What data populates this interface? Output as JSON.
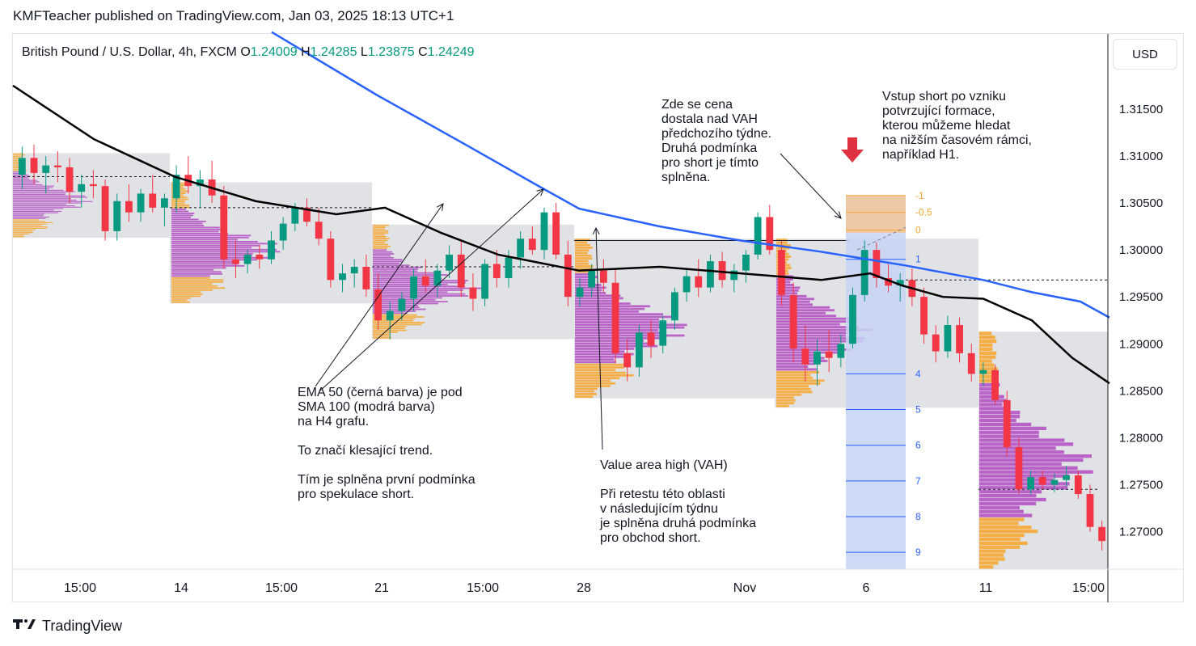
{
  "published_line": "KMFTeacher published on TradingView.com, Jan 03, 2025 18:13 UTC+1",
  "footer_brand": "TradingView",
  "currency_button": "USD",
  "symbol_line": {
    "name": "British Pound / U.S. Dollar, 4h, FXCM",
    "o_label": "O",
    "o_value": "1.24009",
    "h_label": "H",
    "h_value": "1.24285",
    "l_label": "L",
    "l_value": "1.23875",
    "c_label": "C",
    "c_value": "1.24249"
  },
  "colors": {
    "up": "#089981",
    "down": "#f23645",
    "ema50": "#000000",
    "sma100": "#2962ff",
    "profile_purple": "#b554c4",
    "profile_orange": "#f7a833",
    "grid": "#e0e3eb",
    "ohlc": "#089981",
    "fib_zone": "#e7b788",
    "measure_zone": "#c6d3f5"
  },
  "annotations": {
    "trend_lines": [
      "EMA 50 (černá barva) je pod",
      "SMA 100 (modrá barva)",
      "na H4 grafu.",
      "",
      "To značí klesající trend.",
      "",
      "Tím je splněna první podmínka",
      "pro spekulace short."
    ],
    "vah_lines": [
      "Value area high (VAH)",
      "",
      "Při retestu této oblasti",
      "v následujícím týdnu",
      "je splněna druhá podmínka",
      "pro obchod short."
    ],
    "price_above_lines": [
      "Zde se cena",
      "dostala nad VAH",
      "předchozího týdne.",
      "Druhá podmínka",
      "pro short je tímto",
      "splněna."
    ],
    "entry_lines": [
      "Vstup short po vzniku",
      "potvrzující formace,",
      "kterou můžeme hledat",
      "na nižším časovém rámci,",
      "například H1."
    ]
  },
  "chart_data": {
    "type": "candlestick",
    "symbol": "British Pound / U.S. Dollar",
    "timeframe": "4h",
    "exchange": "FXCM",
    "y_axis": {
      "ylim": [
        1.266,
        1.323
      ],
      "ticks": [
        "1.31500",
        "1.31000",
        "1.30500",
        "1.30000",
        "1.29500",
        "1.29000",
        "1.28500",
        "1.28000",
        "1.27500",
        "1.27000"
      ]
    },
    "x_axis": {
      "ticks": [
        "15:00",
        "14",
        "15:00",
        "21",
        "15:00",
        "28",
        "",
        "Nov",
        "6",
        "11",
        "15:00"
      ]
    },
    "fib_levels": [
      "-1",
      "-0.5",
      "0"
    ],
    "measure_levels": [
      "1",
      "4",
      "5",
      "6",
      "7",
      "8",
      "9"
    ],
    "ema50": [
      [
        0,
        1.3175
      ],
      [
        100,
        1.3118
      ],
      [
        200,
        1.3078
      ],
      [
        300,
        1.3052
      ],
      [
        400,
        1.3038
      ],
      [
        460,
        1.3045
      ],
      [
        530,
        1.3018
      ],
      [
        600,
        1.2995
      ],
      [
        700,
        1.2978
      ],
      [
        800,
        1.2982
      ],
      [
        900,
        1.2975
      ],
      [
        1000,
        1.2968
      ],
      [
        1060,
        1.2975
      ],
      [
        1100,
        1.2962
      ],
      [
        1150,
        1.295
      ],
      [
        1200,
        1.2948
      ],
      [
        1260,
        1.2925
      ],
      [
        1310,
        1.2885
      ],
      [
        1356,
        1.2858
      ]
    ],
    "sma100": [
      [
        320,
        1.3232
      ],
      [
        450,
        1.3165
      ],
      [
        560,
        1.3112
      ],
      [
        650,
        1.3068
      ],
      [
        700,
        1.3044
      ],
      [
        800,
        1.3025
      ],
      [
        900,
        1.301
      ],
      [
        1000,
        1.2998
      ],
      [
        1100,
        1.2984
      ],
      [
        1200,
        1.2968
      ],
      [
        1260,
        1.2955
      ],
      [
        1320,
        1.2945
      ],
      [
        1356,
        1.2928
      ]
    ],
    "candles": [
      {
        "o": 1.308,
        "h": 1.311,
        "l": 1.3065,
        "c": 1.3098
      },
      {
        "o": 1.3098,
        "h": 1.3112,
        "l": 1.307,
        "c": 1.3082
      },
      {
        "o": 1.3082,
        "h": 1.31,
        "l": 1.306,
        "c": 1.309
      },
      {
        "o": 1.309,
        "h": 1.3105,
        "l": 1.3072,
        "c": 1.3088
      },
      {
        "o": 1.3088,
        "h": 1.3098,
        "l": 1.305,
        "c": 1.3062
      },
      {
        "o": 1.3062,
        "h": 1.308,
        "l": 1.3045,
        "c": 1.307
      },
      {
        "o": 1.307,
        "h": 1.3085,
        "l": 1.3055,
        "c": 1.3068
      },
      {
        "o": 1.3068,
        "h": 1.3075,
        "l": 1.301,
        "c": 1.302
      },
      {
        "o": 1.302,
        "h": 1.306,
        "l": 1.301,
        "c": 1.3052
      },
      {
        "o": 1.3052,
        "h": 1.307,
        "l": 1.303,
        "c": 1.304
      },
      {
        "o": 1.304,
        "h": 1.3065,
        "l": 1.303,
        "c": 1.306
      },
      {
        "o": 1.306,
        "h": 1.308,
        "l": 1.304,
        "c": 1.3045
      },
      {
        "o": 1.3045,
        "h": 1.306,
        "l": 1.3025,
        "c": 1.3055
      },
      {
        "o": 1.3055,
        "h": 1.309,
        "l": 1.304,
        "c": 1.308
      },
      {
        "o": 1.308,
        "h": 1.31,
        "l": 1.306,
        "c": 1.3068
      },
      {
        "o": 1.3068,
        "h": 1.3085,
        "l": 1.3045,
        "c": 1.3075
      },
      {
        "o": 1.3075,
        "h": 1.3095,
        "l": 1.305,
        "c": 1.3058
      },
      {
        "o": 1.3058,
        "h": 1.3068,
        "l": 1.298,
        "c": 1.299
      },
      {
        "o": 1.299,
        "h": 1.301,
        "l": 1.297,
        "c": 1.2985
      },
      {
        "o": 1.2985,
        "h": 1.3,
        "l": 1.2975,
        "c": 1.2995
      },
      {
        "o": 1.2995,
        "h": 1.3005,
        "l": 1.298,
        "c": 1.299
      },
      {
        "o": 1.299,
        "h": 1.302,
        "l": 1.2985,
        "c": 1.301
      },
      {
        "o": 1.301,
        "h": 1.3035,
        "l": 1.3,
        "c": 1.3028
      },
      {
        "o": 1.3028,
        "h": 1.305,
        "l": 1.302,
        "c": 1.3045
      },
      {
        "o": 1.3045,
        "h": 1.3055,
        "l": 1.3025,
        "c": 1.303
      },
      {
        "o": 1.303,
        "h": 1.3045,
        "l": 1.3005,
        "c": 1.3012
      },
      {
        "o": 1.3012,
        "h": 1.302,
        "l": 1.296,
        "c": 1.2968
      },
      {
        "o": 1.2968,
        "h": 1.2985,
        "l": 1.2955,
        "c": 1.2975
      },
      {
        "o": 1.2975,
        "h": 1.299,
        "l": 1.296,
        "c": 1.2982
      },
      {
        "o": 1.2982,
        "h": 1.2995,
        "l": 1.295,
        "c": 1.2958
      },
      {
        "o": 1.2958,
        "h": 1.2975,
        "l": 1.2915,
        "c": 1.2925
      },
      {
        "o": 1.2925,
        "h": 1.2945,
        "l": 1.2905,
        "c": 1.2935
      },
      {
        "o": 1.2935,
        "h": 1.2955,
        "l": 1.2925,
        "c": 1.2948
      },
      {
        "o": 1.2948,
        "h": 1.298,
        "l": 1.2935,
        "c": 1.2972
      },
      {
        "o": 1.2972,
        "h": 1.299,
        "l": 1.2955,
        "c": 1.2962
      },
      {
        "o": 1.2962,
        "h": 1.2985,
        "l": 1.295,
        "c": 1.2978
      },
      {
        "o": 1.2978,
        "h": 1.3005,
        "l": 1.297,
        "c": 1.2995
      },
      {
        "o": 1.2995,
        "h": 1.301,
        "l": 1.295,
        "c": 1.296
      },
      {
        "o": 1.296,
        "h": 1.2975,
        "l": 1.2935,
        "c": 1.2948
      },
      {
        "o": 1.2948,
        "h": 1.299,
        "l": 1.294,
        "c": 1.2985
      },
      {
        "o": 1.2985,
        "h": 1.3,
        "l": 1.296,
        "c": 1.297
      },
      {
        "o": 1.297,
        "h": 1.3,
        "l": 1.296,
        "c": 1.2992
      },
      {
        "o": 1.2992,
        "h": 1.302,
        "l": 1.298,
        "c": 1.3012
      },
      {
        "o": 1.3012,
        "h": 1.3025,
        "l": 1.2995,
        "c": 1.3
      },
      {
        "o": 1.3,
        "h": 1.3045,
        "l": 1.299,
        "c": 1.304
      },
      {
        "o": 1.304,
        "h": 1.305,
        "l": 1.299,
        "c": 1.2995
      },
      {
        "o": 1.2995,
        "h": 1.301,
        "l": 1.294,
        "c": 1.295
      },
      {
        "o": 1.295,
        "h": 1.297,
        "l": 1.294,
        "c": 1.296
      },
      {
        "o": 1.296,
        "h": 1.2985,
        "l": 1.295,
        "c": 1.2978
      },
      {
        "o": 1.2978,
        "h": 1.299,
        "l": 1.2955,
        "c": 1.2965
      },
      {
        "o": 1.2965,
        "h": 1.298,
        "l": 1.288,
        "c": 1.289
      },
      {
        "o": 1.289,
        "h": 1.2905,
        "l": 1.286,
        "c": 1.2875
      },
      {
        "o": 1.2875,
        "h": 1.292,
        "l": 1.2865,
        "c": 1.2912
      },
      {
        "o": 1.2912,
        "h": 1.2925,
        "l": 1.2885,
        "c": 1.2898
      },
      {
        "o": 1.2898,
        "h": 1.293,
        "l": 1.289,
        "c": 1.2925
      },
      {
        "o": 1.2925,
        "h": 1.296,
        "l": 1.2915,
        "c": 1.2955
      },
      {
        "o": 1.2955,
        "h": 1.298,
        "l": 1.2945,
        "c": 1.2972
      },
      {
        "o": 1.2972,
        "h": 1.299,
        "l": 1.295,
        "c": 1.296
      },
      {
        "o": 1.296,
        "h": 1.2995,
        "l": 1.2955,
        "c": 1.2988
      },
      {
        "o": 1.2988,
        "h": 1.2998,
        "l": 1.296,
        "c": 1.2968
      },
      {
        "o": 1.2968,
        "h": 1.2985,
        "l": 1.2955,
        "c": 1.2978
      },
      {
        "o": 1.2978,
        "h": 1.3,
        "l": 1.2965,
        "c": 1.2995
      },
      {
        "o": 1.2995,
        "h": 1.304,
        "l": 1.299,
        "c": 1.3035
      },
      {
        "o": 1.3035,
        "h": 1.3048,
        "l": 1.2995,
        "c": 1.3
      },
      {
        "o": 1.3,
        "h": 1.301,
        "l": 1.294,
        "c": 1.2952
      },
      {
        "o": 1.2952,
        "h": 1.2965,
        "l": 1.288,
        "c": 1.2895
      },
      {
        "o": 1.2895,
        "h": 1.292,
        "l": 1.286,
        "c": 1.2878
      },
      {
        "o": 1.2878,
        "h": 1.2905,
        "l": 1.2855,
        "c": 1.2892
      },
      {
        "o": 1.2892,
        "h": 1.2915,
        "l": 1.287,
        "c": 1.2885
      },
      {
        "o": 1.2885,
        "h": 1.291,
        "l": 1.2875,
        "c": 1.29
      },
      {
        "o": 1.29,
        "h": 1.296,
        "l": 1.2895,
        "c": 1.2952
      },
      {
        "o": 1.2952,
        "h": 1.301,
        "l": 1.2945,
        "c": 1.3
      },
      {
        "o": 1.3,
        "h": 1.3008,
        "l": 1.296,
        "c": 1.297
      },
      {
        "o": 1.297,
        "h": 1.2985,
        "l": 1.2955,
        "c": 1.2962
      },
      {
        "o": 1.2962,
        "h": 1.2975,
        "l": 1.2945,
        "c": 1.2968
      },
      {
        "o": 1.2968,
        "h": 1.298,
        "l": 1.294,
        "c": 1.295
      },
      {
        "o": 1.295,
        "h": 1.296,
        "l": 1.29,
        "c": 1.291
      },
      {
        "o": 1.291,
        "h": 1.292,
        "l": 1.288,
        "c": 1.2892
      },
      {
        "o": 1.2892,
        "h": 1.293,
        "l": 1.2885,
        "c": 1.292
      },
      {
        "o": 1.292,
        "h": 1.2928,
        "l": 1.288,
        "c": 1.289
      },
      {
        "o": 1.289,
        "h": 1.29,
        "l": 1.286,
        "c": 1.2868
      },
      {
        "o": 1.2868,
        "h": 1.288,
        "l": 1.2855,
        "c": 1.2872
      },
      {
        "o": 1.2872,
        "h": 1.2878,
        "l": 1.2835,
        "c": 1.284
      },
      {
        "o": 1.284,
        "h": 1.285,
        "l": 1.278,
        "c": 1.279
      },
      {
        "o": 1.279,
        "h": 1.28,
        "l": 1.274,
        "c": 1.2745
      },
      {
        "o": 1.2745,
        "h": 1.2765,
        "l": 1.274,
        "c": 1.2758
      },
      {
        "o": 1.2758,
        "h": 1.2765,
        "l": 1.2745,
        "c": 1.275
      },
      {
        "o": 1.275,
        "h": 1.2762,
        "l": 1.2742,
        "c": 1.2755
      },
      {
        "o": 1.2755,
        "h": 1.277,
        "l": 1.2748,
        "c": 1.276
      },
      {
        "o": 1.276,
        "h": 1.2765,
        "l": 1.2735,
        "c": 1.274
      },
      {
        "o": 1.274,
        "h": 1.275,
        "l": 1.27,
        "c": 1.2705
      },
      {
        "o": 1.2705,
        "h": 1.2712,
        "l": 1.268,
        "c": 1.269
      }
    ]
  }
}
